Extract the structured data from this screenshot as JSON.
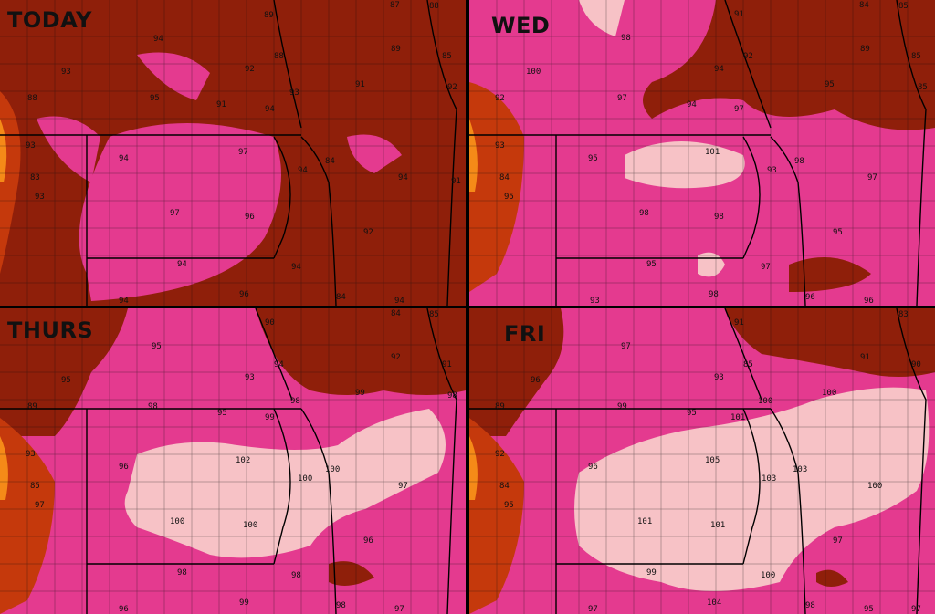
{
  "colors": {
    "t88": "#7b1a06",
    "t90": "#8f1f0a",
    "t95": "#e43a8f",
    "t100": "#f7c2c6",
    "cool": "#c5390c",
    "hot_edge": "#f58a18",
    "line": "#111111"
  },
  "panels": [
    {
      "title": "TODAY",
      "labels": [
        {
          "t": "89"
        },
        {
          "t": "87"
        },
        {
          "t": "88"
        },
        {
          "t": "94"
        },
        {
          "t": "93"
        },
        {
          "t": "92"
        },
        {
          "t": "88"
        },
        {
          "t": "89"
        },
        {
          "t": "85"
        },
        {
          "t": "95"
        },
        {
          "t": "91"
        },
        {
          "t": "93"
        },
        {
          "t": "91"
        },
        {
          "t": "92"
        },
        {
          "t": "88"
        },
        {
          "t": "94"
        },
        {
          "t": "93"
        },
        {
          "t": "94"
        },
        {
          "t": "97"
        },
        {
          "t": "94"
        },
        {
          "t": "84"
        },
        {
          "t": "83"
        },
        {
          "t": "93"
        },
        {
          "t": "94"
        },
        {
          "t": "91"
        },
        {
          "t": "97"
        },
        {
          "t": "96"
        },
        {
          "t": "92"
        },
        {
          "t": "94"
        },
        {
          "t": "94"
        },
        {
          "t": "96"
        },
        {
          "t": "94"
        },
        {
          "t": "84"
        },
        {
          "t": "94"
        }
      ]
    },
    {
      "title": "WED",
      "labels": [
        {
          "t": "91"
        },
        {
          "t": "84"
        },
        {
          "t": "85"
        },
        {
          "t": "98"
        },
        {
          "t": "92"
        },
        {
          "t": "89"
        },
        {
          "t": "100"
        },
        {
          "t": "94"
        },
        {
          "t": "85"
        },
        {
          "t": "95"
        },
        {
          "t": "92"
        },
        {
          "t": "97"
        },
        {
          "t": "85"
        },
        {
          "t": "94"
        },
        {
          "t": "97"
        },
        {
          "t": "93"
        },
        {
          "t": "101"
        },
        {
          "t": "95"
        },
        {
          "t": "93"
        },
        {
          "t": "98"
        },
        {
          "t": "84"
        },
        {
          "t": "97"
        },
        {
          "t": "95"
        },
        {
          "t": "98"
        },
        {
          "t": "98"
        },
        {
          "t": "95"
        },
        {
          "t": "95"
        },
        {
          "t": "97"
        },
        {
          "t": "98"
        },
        {
          "t": "93"
        },
        {
          "t": "96"
        },
        {
          "t": "96"
        }
      ]
    },
    {
      "title": "THURS",
      "labels": [
        {
          "t": "90"
        },
        {
          "t": "84"
        },
        {
          "t": "85"
        },
        {
          "t": "95"
        },
        {
          "t": "92"
        },
        {
          "t": "91"
        },
        {
          "t": "95"
        },
        {
          "t": "94"
        },
        {
          "t": "93"
        },
        {
          "t": "89"
        },
        {
          "t": "98"
        },
        {
          "t": "98"
        },
        {
          "t": "99"
        },
        {
          "t": "98"
        },
        {
          "t": "95"
        },
        {
          "t": "99"
        },
        {
          "t": "93"
        },
        {
          "t": "96"
        },
        {
          "t": "102"
        },
        {
          "t": "100"
        },
        {
          "t": "100"
        },
        {
          "t": "97"
        },
        {
          "t": "85"
        },
        {
          "t": "97"
        },
        {
          "t": "100"
        },
        {
          "t": "100"
        },
        {
          "t": "96"
        },
        {
          "t": "98"
        },
        {
          "t": "98"
        },
        {
          "t": "96"
        },
        {
          "t": "99"
        },
        {
          "t": "98"
        },
        {
          "t": "97"
        }
      ]
    },
    {
      "title": "FRI",
      "labels": [
        {
          "t": "91"
        },
        {
          "t": "83"
        },
        {
          "t": "97"
        },
        {
          "t": "91"
        },
        {
          "t": "96"
        },
        {
          "t": "85"
        },
        {
          "t": "90"
        },
        {
          "t": "93"
        },
        {
          "t": "100"
        },
        {
          "t": "100"
        },
        {
          "t": "89"
        },
        {
          "t": "99"
        },
        {
          "t": "95"
        },
        {
          "t": "101"
        },
        {
          "t": "92"
        },
        {
          "t": "96"
        },
        {
          "t": "105"
        },
        {
          "t": "103"
        },
        {
          "t": "103"
        },
        {
          "t": "84"
        },
        {
          "t": "95"
        },
        {
          "t": "100"
        },
        {
          "t": "101"
        },
        {
          "t": "101"
        },
        {
          "t": "97"
        },
        {
          "t": "99"
        },
        {
          "t": "100"
        },
        {
          "t": "97"
        },
        {
          "t": "104"
        },
        {
          "t": "98"
        },
        {
          "t": "95"
        },
        {
          "t": "97"
        }
      ]
    }
  ]
}
